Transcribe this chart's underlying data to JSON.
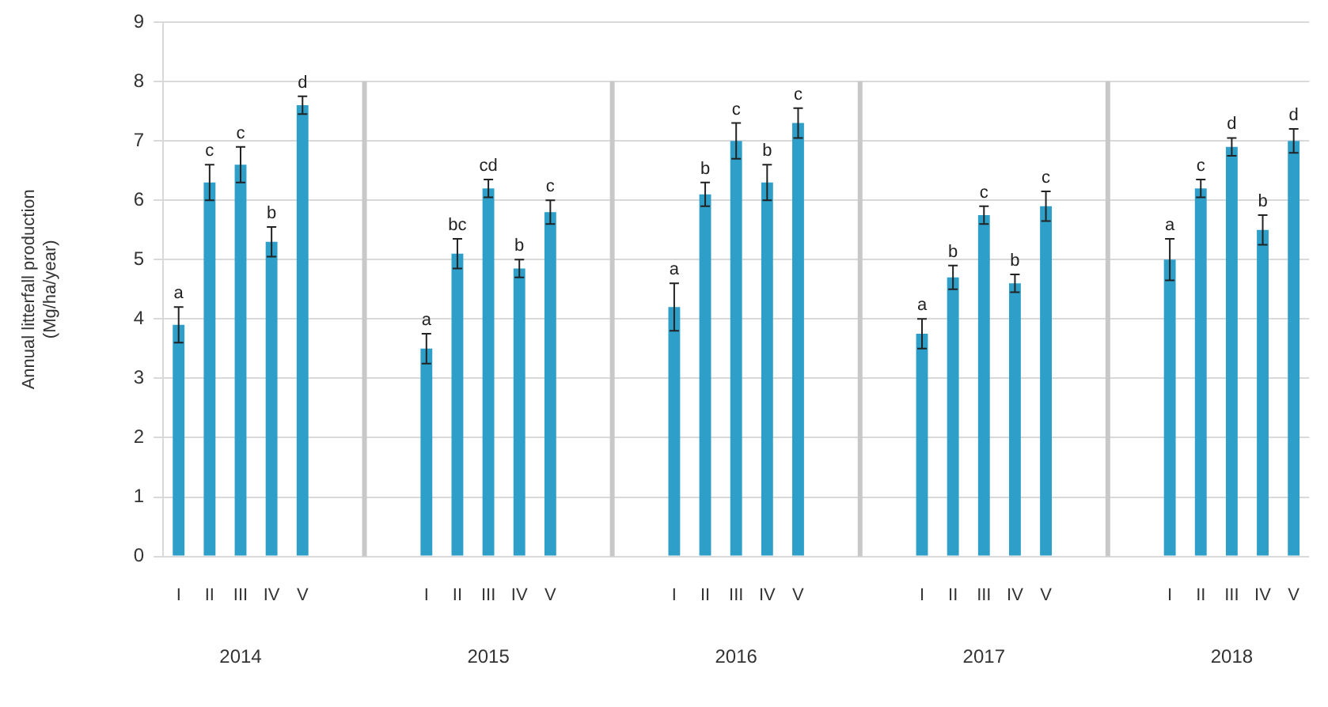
{
  "chart_data": {
    "type": "bar",
    "ylabel": "Annual litterfall production\n(Mg/ha/year)",
    "categories": [
      "I",
      "II",
      "III",
      "IV",
      "V",
      null,
      null,
      null,
      "I",
      "II",
      "III",
      "IV",
      "V",
      null,
      null,
      null,
      "I",
      "II",
      "III",
      "IV",
      "V",
      null,
      null,
      null,
      "I",
      "II",
      "III",
      "IV",
      "V",
      null,
      null,
      null,
      "I",
      "II",
      "III",
      "IV",
      "V"
    ],
    "values": [
      3.9,
      6.3,
      6.6,
      5.3,
      7.6,
      null,
      null,
      null,
      3.5,
      5.1,
      6.2,
      4.85,
      5.8,
      null,
      null,
      null,
      4.2,
      6.1,
      7.0,
      6.3,
      7.3,
      null,
      null,
      null,
      3.75,
      4.7,
      5.75,
      4.6,
      5.9,
      null,
      null,
      null,
      5.0,
      6.2,
      6.9,
      5.5,
      7.0
    ],
    "errors": [
      0.3,
      0.3,
      0.3,
      0.25,
      0.15,
      null,
      null,
      null,
      0.25,
      0.25,
      0.15,
      0.15,
      0.2,
      null,
      null,
      null,
      0.4,
      0.2,
      0.3,
      0.3,
      0.25,
      null,
      null,
      null,
      0.25,
      0.2,
      0.15,
      0.15,
      0.25,
      null,
      null,
      null,
      0.35,
      0.15,
      0.15,
      0.25,
      0.2
    ],
    "value_labels": [
      "a",
      "c",
      "c",
      "b",
      "d",
      null,
      null,
      null,
      "a",
      "bc",
      "cd",
      "b",
      "c",
      null,
      null,
      null,
      "a",
      "b",
      "c",
      "b",
      "c",
      null,
      null,
      null,
      "a",
      "b",
      "c",
      "b",
      "c",
      null,
      null,
      null,
      "a",
      "c",
      "d",
      "b",
      "d"
    ],
    "color": "#2e9fc9",
    "ylim": [
      0,
      9
    ],
    "yticks": [
      0,
      1,
      2,
      3,
      4,
      5,
      6,
      7,
      8,
      9
    ],
    "grid": true,
    "annotations": [
      "2014",
      "2015",
      "2016",
      "2017",
      "2018"
    ]
  }
}
